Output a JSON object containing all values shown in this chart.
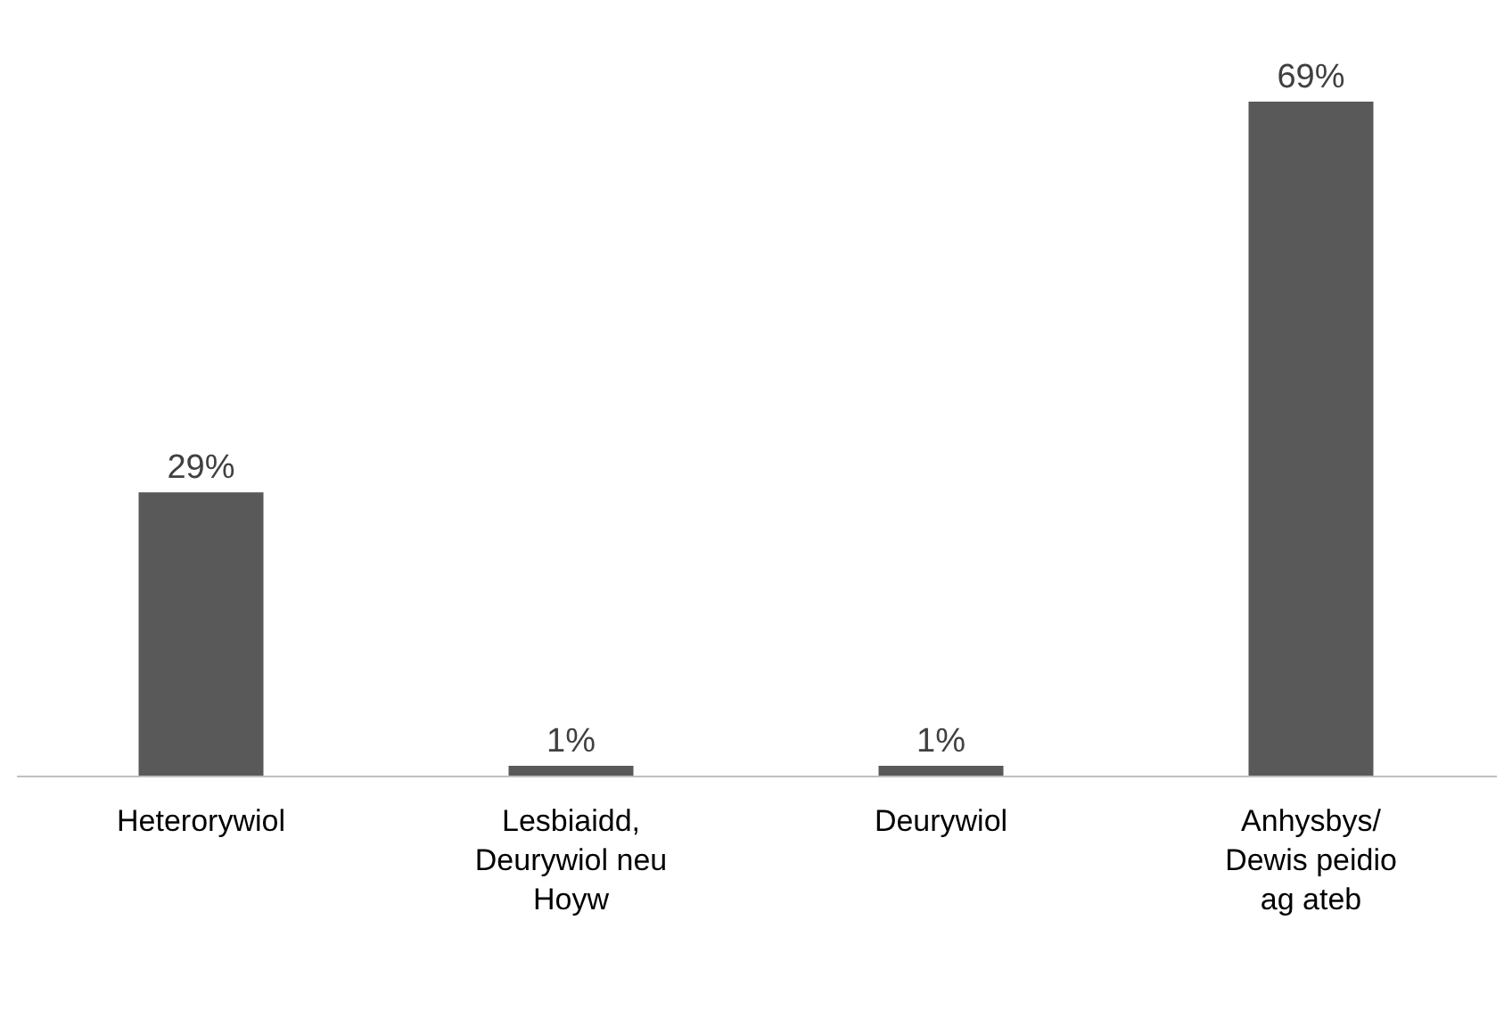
{
  "chart_data": {
    "type": "bar",
    "categories": [
      "Heterorywiol",
      "Lesbiaidd, Deurywiol neu Hoyw",
      "Deurywiol",
      "Anhysbys/ Dewis peidio ag ateb"
    ],
    "values": [
      29,
      1,
      1,
      69
    ],
    "value_labels": [
      "29%",
      "1%",
      "1%",
      "69%"
    ],
    "color": "#595959"
  }
}
